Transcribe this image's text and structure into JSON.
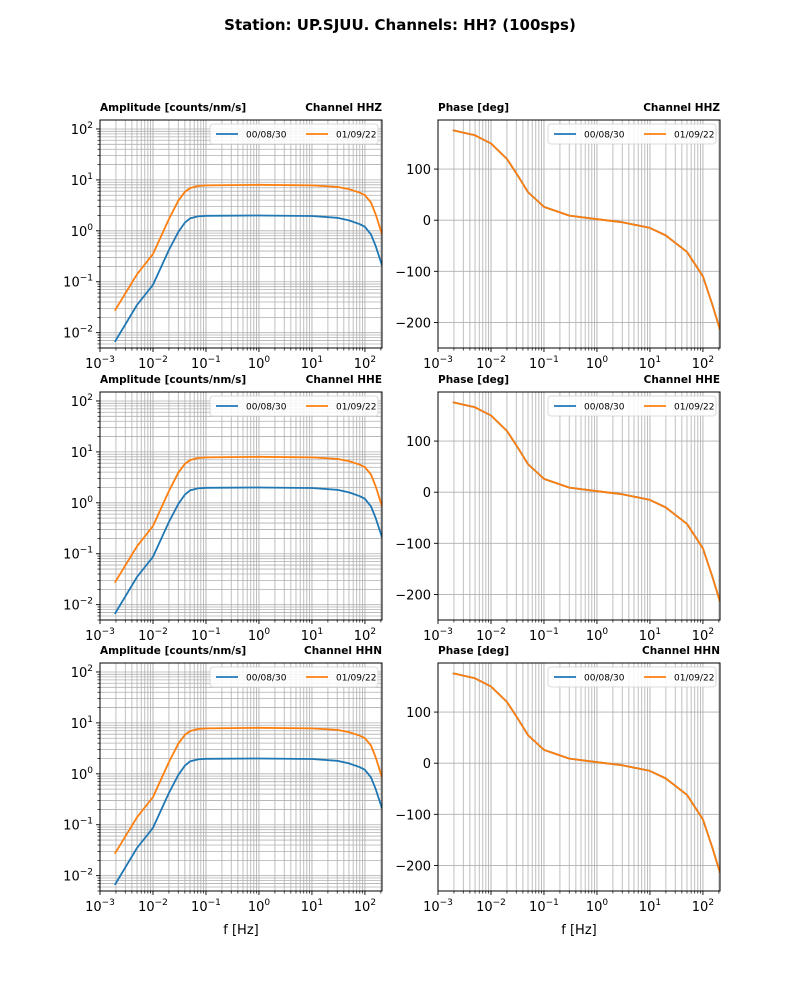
{
  "figure_title": "Station: UP.SJUU. Channels: HH? (100sps)",
  "colors": {
    "series_0": "#1f77b4",
    "series_1": "#ff7f0e",
    "grid": "#b0b0b0"
  },
  "chart_data": [
    {
      "type": "line",
      "channel": "HHZ",
      "kind": "amplitude",
      "title_left": "Amplitude [counts/nm/s]",
      "title_right": "Channel HHZ",
      "xscale": "log",
      "yscale": "log",
      "xlim": [
        0.001,
        210
      ],
      "ylim": [
        0.005,
        150
      ],
      "xlabel": "",
      "ylabel": "",
      "xticks": [
        "10^-3",
        "10^-2",
        "10^-1",
        "10^0",
        "10^1",
        "10^2"
      ],
      "yticks": [
        "10^-2",
        "10^-1",
        "10^0",
        "10^1",
        "10^2"
      ],
      "grid": "major+minor",
      "legend": "upper-right",
      "x": [
        0.0019,
        0.005,
        0.01,
        0.02,
        0.03,
        0.04,
        0.05,
        0.07,
        0.1,
        1,
        10,
        30,
        50,
        80,
        100,
        130,
        160,
        210
      ],
      "series": [
        {
          "name": "00/08/30",
          "values": [
            0.0066,
            0.035,
            0.087,
            0.42,
            0.95,
            1.45,
            1.75,
            1.92,
            1.97,
            2.0,
            1.95,
            1.8,
            1.6,
            1.35,
            1.2,
            0.85,
            0.5,
            0.21
          ]
        },
        {
          "name": "01/09/22",
          "values": [
            0.027,
            0.14,
            0.35,
            1.7,
            3.9,
            5.8,
            6.9,
            7.6,
            7.8,
            8.0,
            7.8,
            7.3,
            6.6,
            5.6,
            5.0,
            3.6,
            2.1,
            0.85
          ]
        }
      ]
    },
    {
      "type": "line",
      "channel": "HHZ",
      "kind": "phase",
      "title_left": "Phase [deg]",
      "title_right": "Channel HHZ",
      "xscale": "log",
      "yscale": "linear",
      "xlim": [
        0.001,
        210
      ],
      "ylim": [
        -250,
        196
      ],
      "xlabel": "",
      "ylabel": "",
      "xticks": [
        "10^-3",
        "10^-2",
        "10^-1",
        "10^0",
        "10^1",
        "10^2"
      ],
      "yticks": [
        -200,
        -100,
        0,
        100
      ],
      "grid": "major",
      "legend": "upper-right",
      "x": [
        0.0019,
        0.005,
        0.01,
        0.02,
        0.03,
        0.05,
        0.1,
        0.3,
        1,
        3,
        10,
        20,
        50,
        100,
        150,
        210
      ],
      "series": [
        {
          "name": "00/08/30",
          "values": [
            176,
            166,
            150,
            120,
            92,
            55,
            26,
            9,
            2,
            -4,
            -15,
            -30,
            -62,
            -110,
            -165,
            -214
          ]
        },
        {
          "name": "01/09/22",
          "values": [
            176,
            166,
            150,
            120,
            92,
            55,
            26,
            9,
            2,
            -4,
            -15,
            -30,
            -62,
            -110,
            -165,
            -214
          ]
        }
      ]
    },
    {
      "type": "line",
      "channel": "HHE",
      "kind": "amplitude",
      "title_left": "Amplitude [counts/nm/s]",
      "title_right": "Channel HHE",
      "xscale": "log",
      "yscale": "log",
      "xlim": [
        0.001,
        210
      ],
      "ylim": [
        0.005,
        150
      ],
      "xlabel": "",
      "ylabel": "",
      "xticks": [
        "10^-3",
        "10^-2",
        "10^-1",
        "10^0",
        "10^1",
        "10^2"
      ],
      "yticks": [
        "10^-2",
        "10^-1",
        "10^0",
        "10^1",
        "10^2"
      ],
      "grid": "major+minor",
      "legend": "upper-right",
      "x": [
        0.0019,
        0.005,
        0.01,
        0.02,
        0.03,
        0.04,
        0.05,
        0.07,
        0.1,
        1,
        10,
        30,
        50,
        80,
        100,
        130,
        160,
        210
      ],
      "series": [
        {
          "name": "00/08/30",
          "values": [
            0.0066,
            0.035,
            0.087,
            0.42,
            0.95,
            1.45,
            1.75,
            1.92,
            1.97,
            2.0,
            1.95,
            1.8,
            1.6,
            1.35,
            1.2,
            0.85,
            0.5,
            0.21
          ]
        },
        {
          "name": "01/09/22",
          "values": [
            0.027,
            0.14,
            0.35,
            1.7,
            3.9,
            5.8,
            6.9,
            7.6,
            7.8,
            8.0,
            7.8,
            7.3,
            6.6,
            5.6,
            5.0,
            3.6,
            2.1,
            0.85
          ]
        }
      ]
    },
    {
      "type": "line",
      "channel": "HHE",
      "kind": "phase",
      "title_left": "Phase [deg]",
      "title_right": "Channel HHE",
      "xscale": "log",
      "yscale": "linear",
      "xlim": [
        0.001,
        210
      ],
      "ylim": [
        -250,
        196
      ],
      "xlabel": "",
      "ylabel": "",
      "xticks": [
        "10^-3",
        "10^-2",
        "10^-1",
        "10^0",
        "10^1",
        "10^2"
      ],
      "yticks": [
        -200,
        -100,
        0,
        100
      ],
      "grid": "major",
      "legend": "upper-right",
      "x": [
        0.0019,
        0.005,
        0.01,
        0.02,
        0.03,
        0.05,
        0.1,
        0.3,
        1,
        3,
        10,
        20,
        50,
        100,
        150,
        210
      ],
      "series": [
        {
          "name": "00/08/30",
          "values": [
            176,
            166,
            150,
            120,
            92,
            55,
            26,
            9,
            2,
            -4,
            -15,
            -30,
            -62,
            -110,
            -165,
            -214
          ]
        },
        {
          "name": "01/09/22",
          "values": [
            176,
            166,
            150,
            120,
            92,
            55,
            26,
            9,
            2,
            -4,
            -15,
            -30,
            -62,
            -110,
            -165,
            -214
          ]
        }
      ]
    },
    {
      "type": "line",
      "channel": "HHN",
      "kind": "amplitude",
      "title_left": "Amplitude [counts/nm/s]",
      "title_right": "Channel HHN",
      "xscale": "log",
      "yscale": "log",
      "xlim": [
        0.001,
        210
      ],
      "ylim": [
        0.005,
        150
      ],
      "xlabel": "f [Hz]",
      "ylabel": "",
      "xticks": [
        "10^-3",
        "10^-2",
        "10^-1",
        "10^0",
        "10^1",
        "10^2"
      ],
      "yticks": [
        "10^-2",
        "10^-1",
        "10^0",
        "10^1",
        "10^2"
      ],
      "grid": "major+minor",
      "legend": "upper-right",
      "x": [
        0.0019,
        0.005,
        0.01,
        0.02,
        0.03,
        0.04,
        0.05,
        0.07,
        0.1,
        1,
        10,
        30,
        50,
        80,
        100,
        130,
        160,
        210
      ],
      "series": [
        {
          "name": "00/08/30",
          "values": [
            0.0066,
            0.035,
            0.087,
            0.42,
            0.95,
            1.45,
            1.75,
            1.92,
            1.97,
            2.0,
            1.95,
            1.8,
            1.6,
            1.35,
            1.2,
            0.85,
            0.5,
            0.21
          ]
        },
        {
          "name": "01/09/22",
          "values": [
            0.027,
            0.14,
            0.35,
            1.7,
            3.9,
            5.8,
            6.9,
            7.6,
            7.8,
            8.0,
            7.8,
            7.3,
            6.6,
            5.6,
            5.0,
            3.6,
            2.1,
            0.85
          ]
        }
      ]
    },
    {
      "type": "line",
      "channel": "HHN",
      "kind": "phase",
      "title_left": "Phase [deg]",
      "title_right": "Channel HHN",
      "xscale": "log",
      "yscale": "linear",
      "xlim": [
        0.001,
        210
      ],
      "ylim": [
        -250,
        196
      ],
      "xlabel": "f [Hz]",
      "ylabel": "",
      "xticks": [
        "10^-3",
        "10^-2",
        "10^-1",
        "10^0",
        "10^1",
        "10^2"
      ],
      "yticks": [
        -200,
        -100,
        0,
        100
      ],
      "grid": "major",
      "legend": "upper-right",
      "x": [
        0.0019,
        0.005,
        0.01,
        0.02,
        0.03,
        0.05,
        0.1,
        0.3,
        1,
        3,
        10,
        20,
        50,
        100,
        150,
        210
      ],
      "series": [
        {
          "name": "00/08/30",
          "values": [
            176,
            166,
            150,
            120,
            92,
            55,
            26,
            9,
            2,
            -4,
            -15,
            -30,
            -62,
            -110,
            -165,
            -214
          ]
        },
        {
          "name": "01/09/22",
          "values": [
            176,
            166,
            150,
            120,
            92,
            55,
            26,
            9,
            2,
            -4,
            -15,
            -30,
            -62,
            -110,
            -165,
            -214
          ]
        }
      ]
    }
  ]
}
